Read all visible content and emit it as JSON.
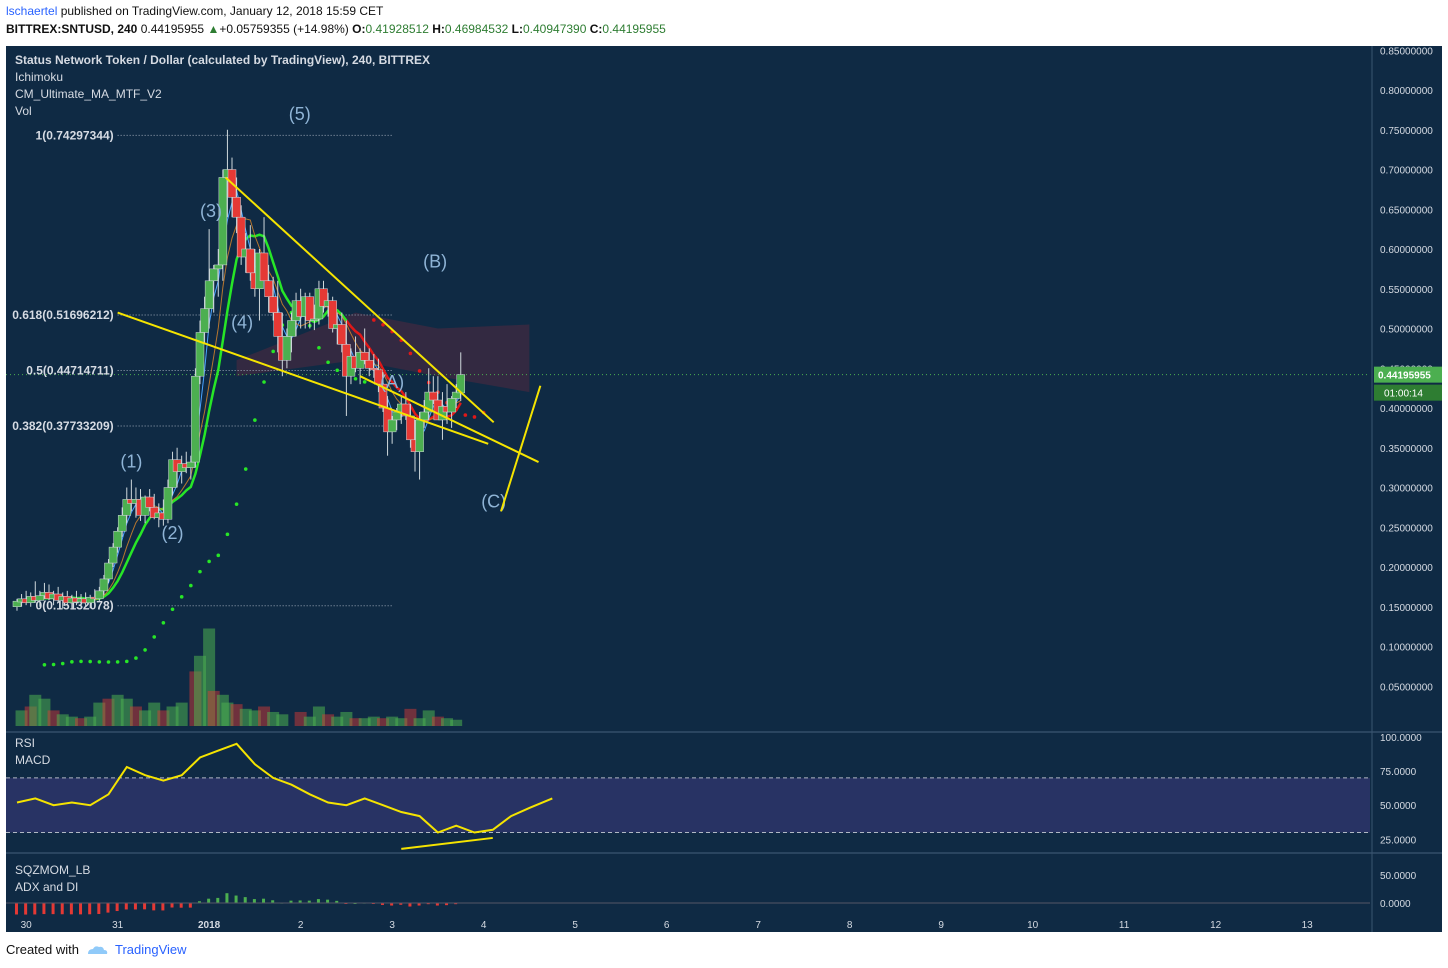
{
  "header": {
    "author": "lschaertel",
    "published_text": " published on TradingView.com, January 12, 2018 15:59 CET",
    "symbol": "BITTREX:SNTUSD, 240",
    "last": "0.44195955",
    "change": "+0.05759355 (+14.98%)",
    "o_label": "O:",
    "o_value": "0.41928512",
    "h_label": "H:",
    "h_value": "0.46984532",
    "l_label": "L:",
    "l_value": "0.40947390",
    "c_label": "C:",
    "c_value": "0.44195955"
  },
  "legend": {
    "title": "Status Network Token / Dollar (calculated by TradingView), 240, BITTREX",
    "lines": [
      "Ichimoku",
      "CM_Ultimate_MA_MTF_V2",
      "Vol"
    ]
  },
  "footer": {
    "created_with": "Created with",
    "brand": "TradingView"
  },
  "colors": {
    "background": "#0f2a44",
    "up": "#4caf50",
    "down": "#e53935",
    "trendline": "#f5e400",
    "fib": "#9aa6b5",
    "wave_label": "#8fb4d6",
    "ma_green": "#27e627",
    "ma_red": "#e01818",
    "rsi": "#f5e400"
  },
  "chart_data": [
    {
      "type": "candlestick",
      "title": "Status Network Token / Dollar (calculated by TradingView), 240, BITTREX",
      "ylim": [
        0.0,
        0.88
      ],
      "y_ticks": [
        "0.85000000",
        "0.80000000",
        "0.75000000",
        "0.70000000",
        "0.65000000",
        "0.60000000",
        "0.55000000",
        "0.50000000",
        "0.45000000",
        "0.40000000",
        "0.35000000",
        "0.30000000",
        "0.25000000",
        "0.20000000",
        "0.15000000",
        "0.10000000",
        "0.05000000"
      ],
      "x_ticks": [
        "30",
        "31",
        "2018",
        "2",
        "3",
        "4",
        "5",
        "6",
        "7",
        "8",
        "9",
        "10",
        "11",
        "12",
        "13"
      ],
      "last_price_label": "0.44195955",
      "countdown_label": "01:00:14",
      "candles": [
        [
          29.9,
          0.15,
          0.16,
          0.145,
          0.157
        ],
        [
          29.95,
          0.156,
          0.166,
          0.15,
          0.16
        ],
        [
          30.0,
          0.16,
          0.17,
          0.152,
          0.155
        ],
        [
          30.05,
          0.155,
          0.168,
          0.15,
          0.163
        ],
        [
          30.1,
          0.163,
          0.182,
          0.155,
          0.158
        ],
        [
          30.15,
          0.158,
          0.17,
          0.15,
          0.164
        ],
        [
          30.2,
          0.164,
          0.18,
          0.16,
          0.168
        ],
        [
          30.25,
          0.168,
          0.178,
          0.158,
          0.16
        ],
        [
          30.3,
          0.16,
          0.17,
          0.152,
          0.166
        ],
        [
          30.35,
          0.166,
          0.175,
          0.155,
          0.158
        ],
        [
          30.4,
          0.158,
          0.168,
          0.148,
          0.163
        ],
        [
          30.45,
          0.163,
          0.17,
          0.152,
          0.155
        ],
        [
          30.5,
          0.155,
          0.165,
          0.148,
          0.161
        ],
        [
          30.55,
          0.161,
          0.17,
          0.152,
          0.156
        ],
        [
          30.6,
          0.156,
          0.166,
          0.15,
          0.16
        ],
        [
          30.65,
          0.16,
          0.168,
          0.15,
          0.155
        ],
        [
          30.7,
          0.155,
          0.165,
          0.148,
          0.162
        ],
        [
          30.75,
          0.162,
          0.172,
          0.155,
          0.16
        ],
        [
          30.8,
          0.16,
          0.175,
          0.156,
          0.17
        ],
        [
          30.85,
          0.17,
          0.19,
          0.165,
          0.185
        ],
        [
          30.9,
          0.185,
          0.21,
          0.18,
          0.205
        ],
        [
          30.95,
          0.205,
          0.23,
          0.2,
          0.225
        ],
        [
          31.0,
          0.225,
          0.25,
          0.218,
          0.245
        ],
        [
          31.05,
          0.245,
          0.275,
          0.238,
          0.265
        ],
        [
          31.1,
          0.265,
          0.3,
          0.255,
          0.285
        ],
        [
          31.15,
          0.285,
          0.31,
          0.27,
          0.28
        ],
        [
          31.2,
          0.28,
          0.3,
          0.262,
          0.285
        ],
        [
          31.25,
          0.285,
          0.298,
          0.258,
          0.265
        ],
        [
          31.3,
          0.265,
          0.29,
          0.255,
          0.288
        ],
        [
          31.35,
          0.288,
          0.298,
          0.27,
          0.275
        ],
        [
          31.4,
          0.275,
          0.292,
          0.26,
          0.262
        ],
        [
          31.45,
          0.262,
          0.28,
          0.25,
          0.268
        ],
        [
          31.5,
          0.268,
          0.285,
          0.252,
          0.26
        ],
        [
          31.55,
          0.26,
          0.31,
          0.255,
          0.3
        ],
        [
          31.6,
          0.3,
          0.345,
          0.29,
          0.335
        ],
        [
          31.65,
          0.335,
          0.35,
          0.3,
          0.32
        ],
        [
          31.7,
          0.32,
          0.34,
          0.305,
          0.33
        ],
        [
          31.75,
          0.33,
          0.345,
          0.318,
          0.325
        ],
        [
          31.8,
          0.325,
          0.34,
          0.31,
          0.332
        ],
        [
          31.85,
          0.332,
          0.45,
          0.325,
          0.44
        ],
        [
          31.9,
          0.44,
          0.51,
          0.43,
          0.495
        ],
        [
          31.95,
          0.495,
          0.54,
          0.48,
          0.525
        ],
        [
          32.0,
          0.525,
          0.625,
          0.5,
          0.56
        ],
        [
          32.05,
          0.56,
          0.58,
          0.52,
          0.575
        ],
        [
          32.1,
          0.575,
          0.6,
          0.54,
          0.58
        ],
        [
          32.15,
          0.58,
          0.7,
          0.56,
          0.69
        ],
        [
          32.2,
          0.69,
          0.75,
          0.64,
          0.7
        ],
        [
          32.25,
          0.7,
          0.715,
          0.64,
          0.665
        ],
        [
          32.3,
          0.665,
          0.69,
          0.62,
          0.64
        ],
        [
          32.35,
          0.64,
          0.655,
          0.58,
          0.59
        ],
        [
          32.4,
          0.59,
          0.62,
          0.57,
          0.6
        ],
        [
          32.45,
          0.6,
          0.63,
          0.56,
          0.57
        ],
        [
          32.5,
          0.57,
          0.6,
          0.54,
          0.55
        ],
        [
          32.55,
          0.55,
          0.6,
          0.51,
          0.595
        ],
        [
          32.6,
          0.595,
          0.64,
          0.56,
          0.56
        ],
        [
          32.65,
          0.56,
          0.58,
          0.52,
          0.54
        ],
        [
          32.7,
          0.54,
          0.565,
          0.51,
          0.52
        ],
        [
          32.75,
          0.52,
          0.56,
          0.47,
          0.49
        ],
        [
          32.8,
          0.49,
          0.52,
          0.44,
          0.46
        ],
        [
          32.85,
          0.46,
          0.5,
          0.45,
          0.49
        ],
        [
          32.9,
          0.49,
          0.52,
          0.47,
          0.51
        ],
        [
          32.95,
          0.51,
          0.545,
          0.49,
          0.535
        ],
        [
          33.0,
          0.535,
          0.55,
          0.5,
          0.515
        ],
        [
          33.05,
          0.515,
          0.545,
          0.5,
          0.54
        ],
        [
          33.1,
          0.54,
          0.545,
          0.5,
          0.51
        ],
        [
          33.15,
          0.51,
          0.53,
          0.498,
          0.512
        ],
        [
          33.2,
          0.512,
          0.56,
          0.505,
          0.55
        ],
        [
          33.25,
          0.55,
          0.56,
          0.52,
          0.528
        ],
        [
          33.3,
          0.528,
          0.545,
          0.515,
          0.535
        ],
        [
          33.35,
          0.535,
          0.54,
          0.495,
          0.5
        ],
        [
          33.4,
          0.5,
          0.52,
          0.48,
          0.505
        ],
        [
          33.45,
          0.505,
          0.52,
          0.47,
          0.48
        ],
        [
          33.5,
          0.48,
          0.51,
          0.39,
          0.44
        ],
        [
          33.55,
          0.44,
          0.475,
          0.43,
          0.465
        ],
        [
          33.6,
          0.465,
          0.49,
          0.445,
          0.45
        ],
        [
          33.65,
          0.45,
          0.475,
          0.43,
          0.47
        ],
        [
          33.7,
          0.47,
          0.5,
          0.455,
          0.46
        ],
        [
          33.75,
          0.46,
          0.475,
          0.44,
          0.45
        ],
        [
          33.8,
          0.45,
          0.468,
          0.438,
          0.448
        ],
        [
          33.85,
          0.448,
          0.462,
          0.42,
          0.43
        ],
        [
          33.9,
          0.43,
          0.445,
          0.395,
          0.4
        ],
        [
          33.95,
          0.4,
          0.415,
          0.34,
          0.37
        ],
        [
          34.0,
          0.37,
          0.39,
          0.355,
          0.385
        ],
        [
          34.05,
          0.385,
          0.4,
          0.372,
          0.395
        ],
        [
          34.1,
          0.395,
          0.415,
          0.38,
          0.405
        ],
        [
          34.15,
          0.405,
          0.42,
          0.385,
          0.39
        ],
        [
          34.2,
          0.39,
          0.405,
          0.35,
          0.36
        ],
        [
          34.25,
          0.36,
          0.385,
          0.32,
          0.345
        ],
        [
          34.3,
          0.345,
          0.395,
          0.31,
          0.385
        ],
        [
          34.35,
          0.385,
          0.41,
          0.375,
          0.395
        ],
        [
          34.4,
          0.395,
          0.45,
          0.385,
          0.42
        ],
        [
          34.45,
          0.42,
          0.44,
          0.405,
          0.41
        ],
        [
          34.5,
          0.41,
          0.44,
          0.39,
          0.385
        ],
        [
          34.55,
          0.385,
          0.42,
          0.36,
          0.402
        ],
        [
          34.6,
          0.402,
          0.43,
          0.38,
          0.395
        ],
        [
          34.65,
          0.395,
          0.415,
          0.375,
          0.412
        ],
        [
          34.7,
          0.412,
          0.43,
          0.4,
          0.42
        ],
        [
          34.75,
          0.419,
          0.47,
          0.409,
          0.442
        ]
      ],
      "fibonacci": [
        {
          "label": "1(0.74297344)",
          "value": 0.74297344
        },
        {
          "label": "0.618(0.51696212)",
          "value": 0.51696212
        },
        {
          "label": "0.5(0.44714711)",
          "value": 0.44714711
        },
        {
          "label": "0.382(0.37733209)",
          "value": 0.37733209
        },
        {
          "label": "0(0.15132078)",
          "value": 0.15132078
        }
      ],
      "wave_labels": [
        {
          "text": "(1)",
          "x": 31.15,
          "y": 0.325
        },
        {
          "text": "(2)",
          "x": 31.6,
          "y": 0.235
        },
        {
          "text": "(3)",
          "x": 32.02,
          "y": 0.64
        },
        {
          "text": "(4)",
          "x": 32.36,
          "y": 0.5
        },
        {
          "text": "(5)",
          "x": 32.99,
          "y": 0.762
        },
        {
          "text": "(A)",
          "x": 34.0,
          "y": 0.425
        },
        {
          "text": "(B)",
          "x": 34.47,
          "y": 0.577
        },
        {
          "text": "(C)",
          "x": 35.11,
          "y": 0.275
        }
      ],
      "trendlines": [
        {
          "from": [
            32.18,
            0.69
          ],
          "to": [
            35.11,
            0.382
          ]
        },
        {
          "from": [
            31.0,
            0.52
          ],
          "to": [
            35.05,
            0.355
          ]
        },
        {
          "from": [
            35.19,
            0.27
          ],
          "to": [
            35.62,
            0.428
          ]
        },
        {
          "from": [
            33.65,
            0.44
          ],
          "to": [
            35.6,
            0.332
          ]
        }
      ],
      "volume": [
        [
          29.95,
          20
        ],
        [
          30.05,
          25
        ],
        [
          30.1,
          40
        ],
        [
          30.2,
          35
        ],
        [
          30.3,
          20
        ],
        [
          30.4,
          15
        ],
        [
          30.5,
          12
        ],
        [
          30.6,
          10
        ],
        [
          30.7,
          12
        ],
        [
          30.8,
          30
        ],
        [
          30.9,
          35
        ],
        [
          31.0,
          40
        ],
        [
          31.1,
          35
        ],
        [
          31.2,
          25
        ],
        [
          31.3,
          20
        ],
        [
          31.4,
          30
        ],
        [
          31.5,
          20
        ],
        [
          31.6,
          25
        ],
        [
          31.7,
          30
        ],
        [
          31.85,
          70
        ],
        [
          31.9,
          90
        ],
        [
          32.0,
          125
        ],
        [
          32.05,
          45
        ],
        [
          32.15,
          40
        ],
        [
          32.2,
          30
        ],
        [
          32.3,
          28
        ],
        [
          32.4,
          22
        ],
        [
          32.5,
          20
        ],
        [
          32.6,
          25
        ],
        [
          32.7,
          18
        ],
        [
          32.8,
          15
        ],
        [
          33.0,
          18
        ],
        [
          33.1,
          12
        ],
        [
          33.2,
          25
        ],
        [
          33.3,
          15
        ],
        [
          33.4,
          12
        ],
        [
          33.5,
          18
        ],
        [
          33.6,
          10
        ],
        [
          33.7,
          10
        ],
        [
          33.8,
          12
        ],
        [
          33.9,
          10
        ],
        [
          34.0,
          12
        ],
        [
          34.1,
          10
        ],
        [
          34.2,
          22
        ],
        [
          34.3,
          10
        ],
        [
          34.4,
          20
        ],
        [
          34.5,
          12
        ],
        [
          34.6,
          10
        ],
        [
          34.7,
          8
        ]
      ]
    },
    {
      "type": "line",
      "title": "RSI",
      "subtitle": "MACD",
      "ylim": [
        12,
        108
      ],
      "y_ticks": [
        "100.0000",
        "75.0000",
        "50.0000",
        "25.0000"
      ],
      "overbought": 70,
      "oversold": 30,
      "rsi": [
        [
          29.9,
          52
        ],
        [
          30.1,
          55
        ],
        [
          30.3,
          50
        ],
        [
          30.5,
          52
        ],
        [
          30.7,
          50
        ],
        [
          30.9,
          58
        ],
        [
          31.1,
          78
        ],
        [
          31.3,
          72
        ],
        [
          31.5,
          68
        ],
        [
          31.7,
          72
        ],
        [
          31.9,
          85
        ],
        [
          32.1,
          90
        ],
        [
          32.3,
          95
        ],
        [
          32.5,
          80
        ],
        [
          32.7,
          70
        ],
        [
          32.9,
          65
        ],
        [
          33.1,
          58
        ],
        [
          33.3,
          52
        ],
        [
          33.5,
          50
        ],
        [
          33.7,
          55
        ],
        [
          33.9,
          50
        ],
        [
          34.1,
          45
        ],
        [
          34.3,
          42
        ],
        [
          34.5,
          30
        ],
        [
          34.7,
          35
        ],
        [
          34.9,
          30
        ],
        [
          35.1,
          32
        ],
        [
          35.3,
          42
        ],
        [
          35.5,
          48
        ],
        [
          35.75,
          55
        ]
      ]
    },
    {
      "type": "bar",
      "title": "SQZMOM_LB",
      "subtitle": "ADX and DI",
      "ylim": [
        -15,
        75
      ],
      "y_ticks": [
        "50.0000",
        "0.0000"
      ]
    }
  ]
}
